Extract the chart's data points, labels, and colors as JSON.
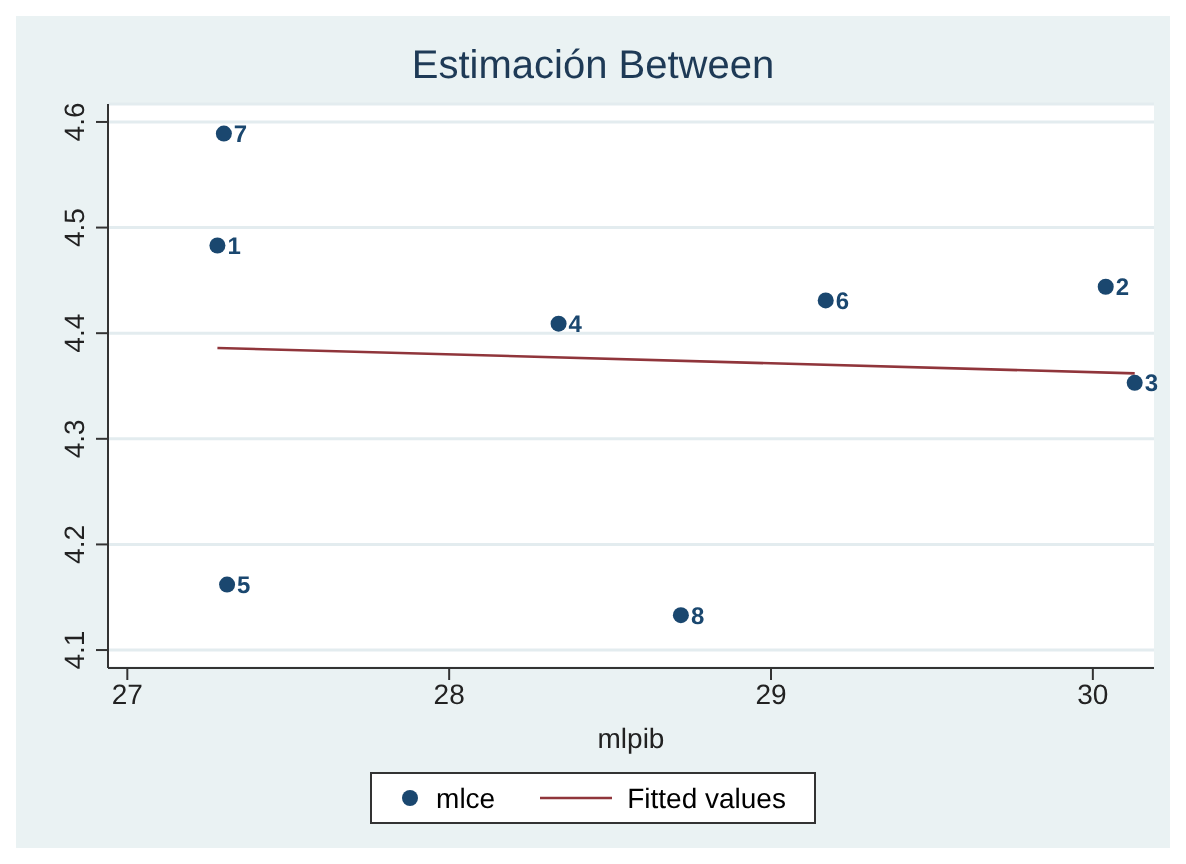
{
  "chart_data": {
    "type": "scatter",
    "title": "Estimación Between",
    "xlabel": "mlpib",
    "xlim": [
      26.94,
      30.19
    ],
    "xticks": [
      27,
      28,
      29,
      30
    ],
    "ylim": [
      4.083,
      4.617
    ],
    "yticks": [
      4.1,
      4.2,
      4.3,
      4.4,
      4.5,
      4.6
    ],
    "grid": "y",
    "legend": "bottom",
    "series": [
      {
        "name": "mlce",
        "marker": "circle",
        "color": "#1a476f",
        "x": [
          27.28,
          30.04,
          30.13,
          28.34,
          27.31,
          29.17,
          27.3,
          28.72
        ],
        "values": [
          4.483,
          4.444,
          4.353,
          4.409,
          4.162,
          4.431,
          4.589,
          4.133
        ]
      },
      {
        "name": "Fitted values",
        "type": "line",
        "marker": "none",
        "color": "#90353b",
        "x": [
          27.28,
          30.13
        ],
        "values": [
          4.386,
          4.362
        ]
      }
    ],
    "annotations": [
      {
        "text": "1",
        "x": 27.28,
        "y": 4.483
      },
      {
        "text": "2",
        "x": 30.04,
        "y": 4.444
      },
      {
        "text": "3",
        "x": 30.13,
        "y": 4.353
      },
      {
        "text": "4",
        "x": 28.34,
        "y": 4.409
      },
      {
        "text": "5",
        "x": 27.31,
        "y": 4.162
      },
      {
        "text": "6",
        "x": 29.17,
        "y": 4.431
      },
      {
        "text": "7",
        "x": 27.3,
        "y": 4.589
      },
      {
        "text": "8",
        "x": 28.72,
        "y": 4.133
      }
    ]
  }
}
